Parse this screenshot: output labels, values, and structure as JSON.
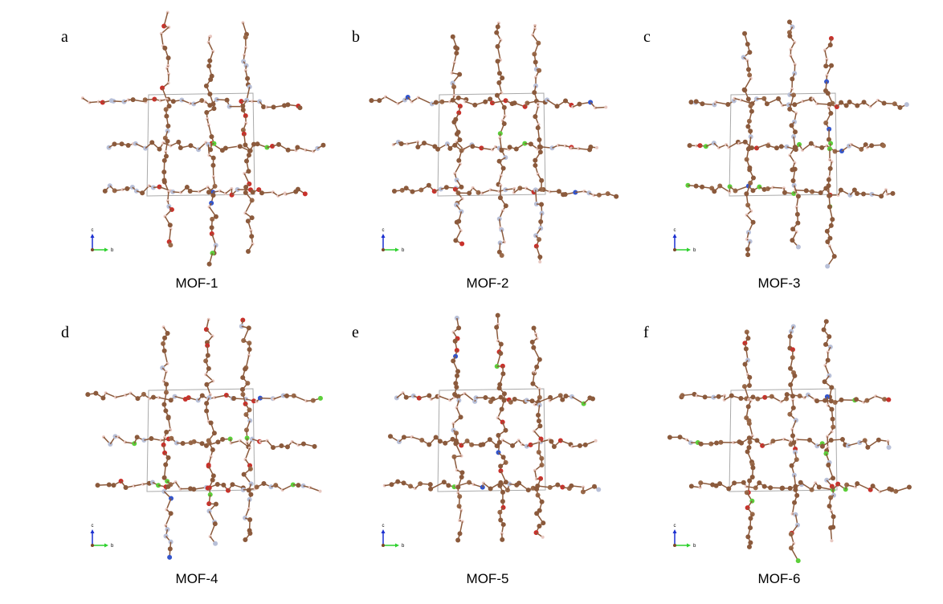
{
  "panels": [
    {
      "letter": "a",
      "caption": "MOF-1",
      "axis_c": "c",
      "axis_b": "b"
    },
    {
      "letter": "b",
      "caption": "MOF-2",
      "axis_c": "c",
      "axis_b": "b"
    },
    {
      "letter": "c",
      "caption": "MOF-3",
      "axis_c": "c",
      "axis_b": "b"
    },
    {
      "letter": "d",
      "caption": "MOF-4",
      "axis_c": "c",
      "axis_b": "b"
    },
    {
      "letter": "e",
      "caption": "MOF-5",
      "axis_c": "c",
      "axis_b": "b"
    },
    {
      "letter": "f",
      "caption": "MOF-6",
      "axis_c": "c",
      "axis_b": "b"
    }
  ]
}
